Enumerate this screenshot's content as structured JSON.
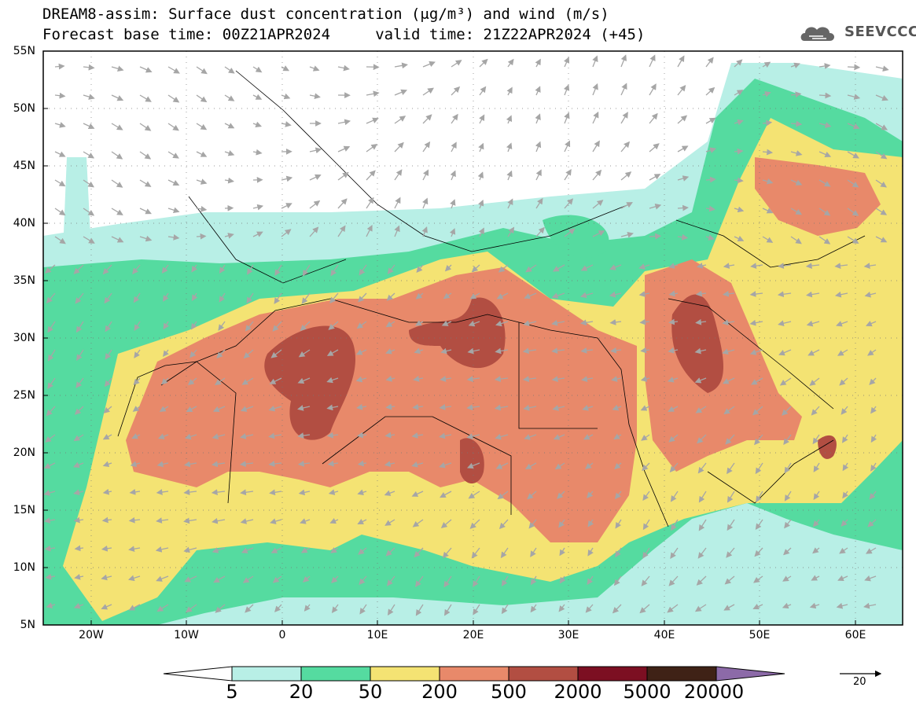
{
  "title": {
    "line1": "DREAM8-assim: Surface dust concentration (μg/m³) and wind (m/s)",
    "line2": "Forecast base time: 00Z21APR2024     valid time: 21Z22APR2024 (+45)"
  },
  "logo": {
    "text": "SEEVCCC",
    "icon": "cloud-icon"
  },
  "axes": {
    "lat_labels": [
      "55N",
      "50N",
      "45N",
      "40N",
      "35N",
      "30N",
      "25N",
      "20N",
      "15N",
      "10N",
      "5N"
    ],
    "lon_labels": [
      "20W",
      "10W",
      "0",
      "10E",
      "20E",
      "30E",
      "40E",
      "50E",
      "60E"
    ],
    "lat_range": [
      5,
      55
    ],
    "lon_range": [
      -25,
      65
    ]
  },
  "colorbar": {
    "labels": [
      "5",
      "20",
      "50",
      "200",
      "500",
      "2000",
      "5000",
      "20000"
    ],
    "colors": [
      "#b8efe6",
      "#55dba0",
      "#f4e373",
      "#e8896a",
      "#b24e42",
      "#7c0f22",
      "#3f2216",
      "#8c6aa8"
    ]
  },
  "wind_reference": {
    "value": "20"
  }
}
